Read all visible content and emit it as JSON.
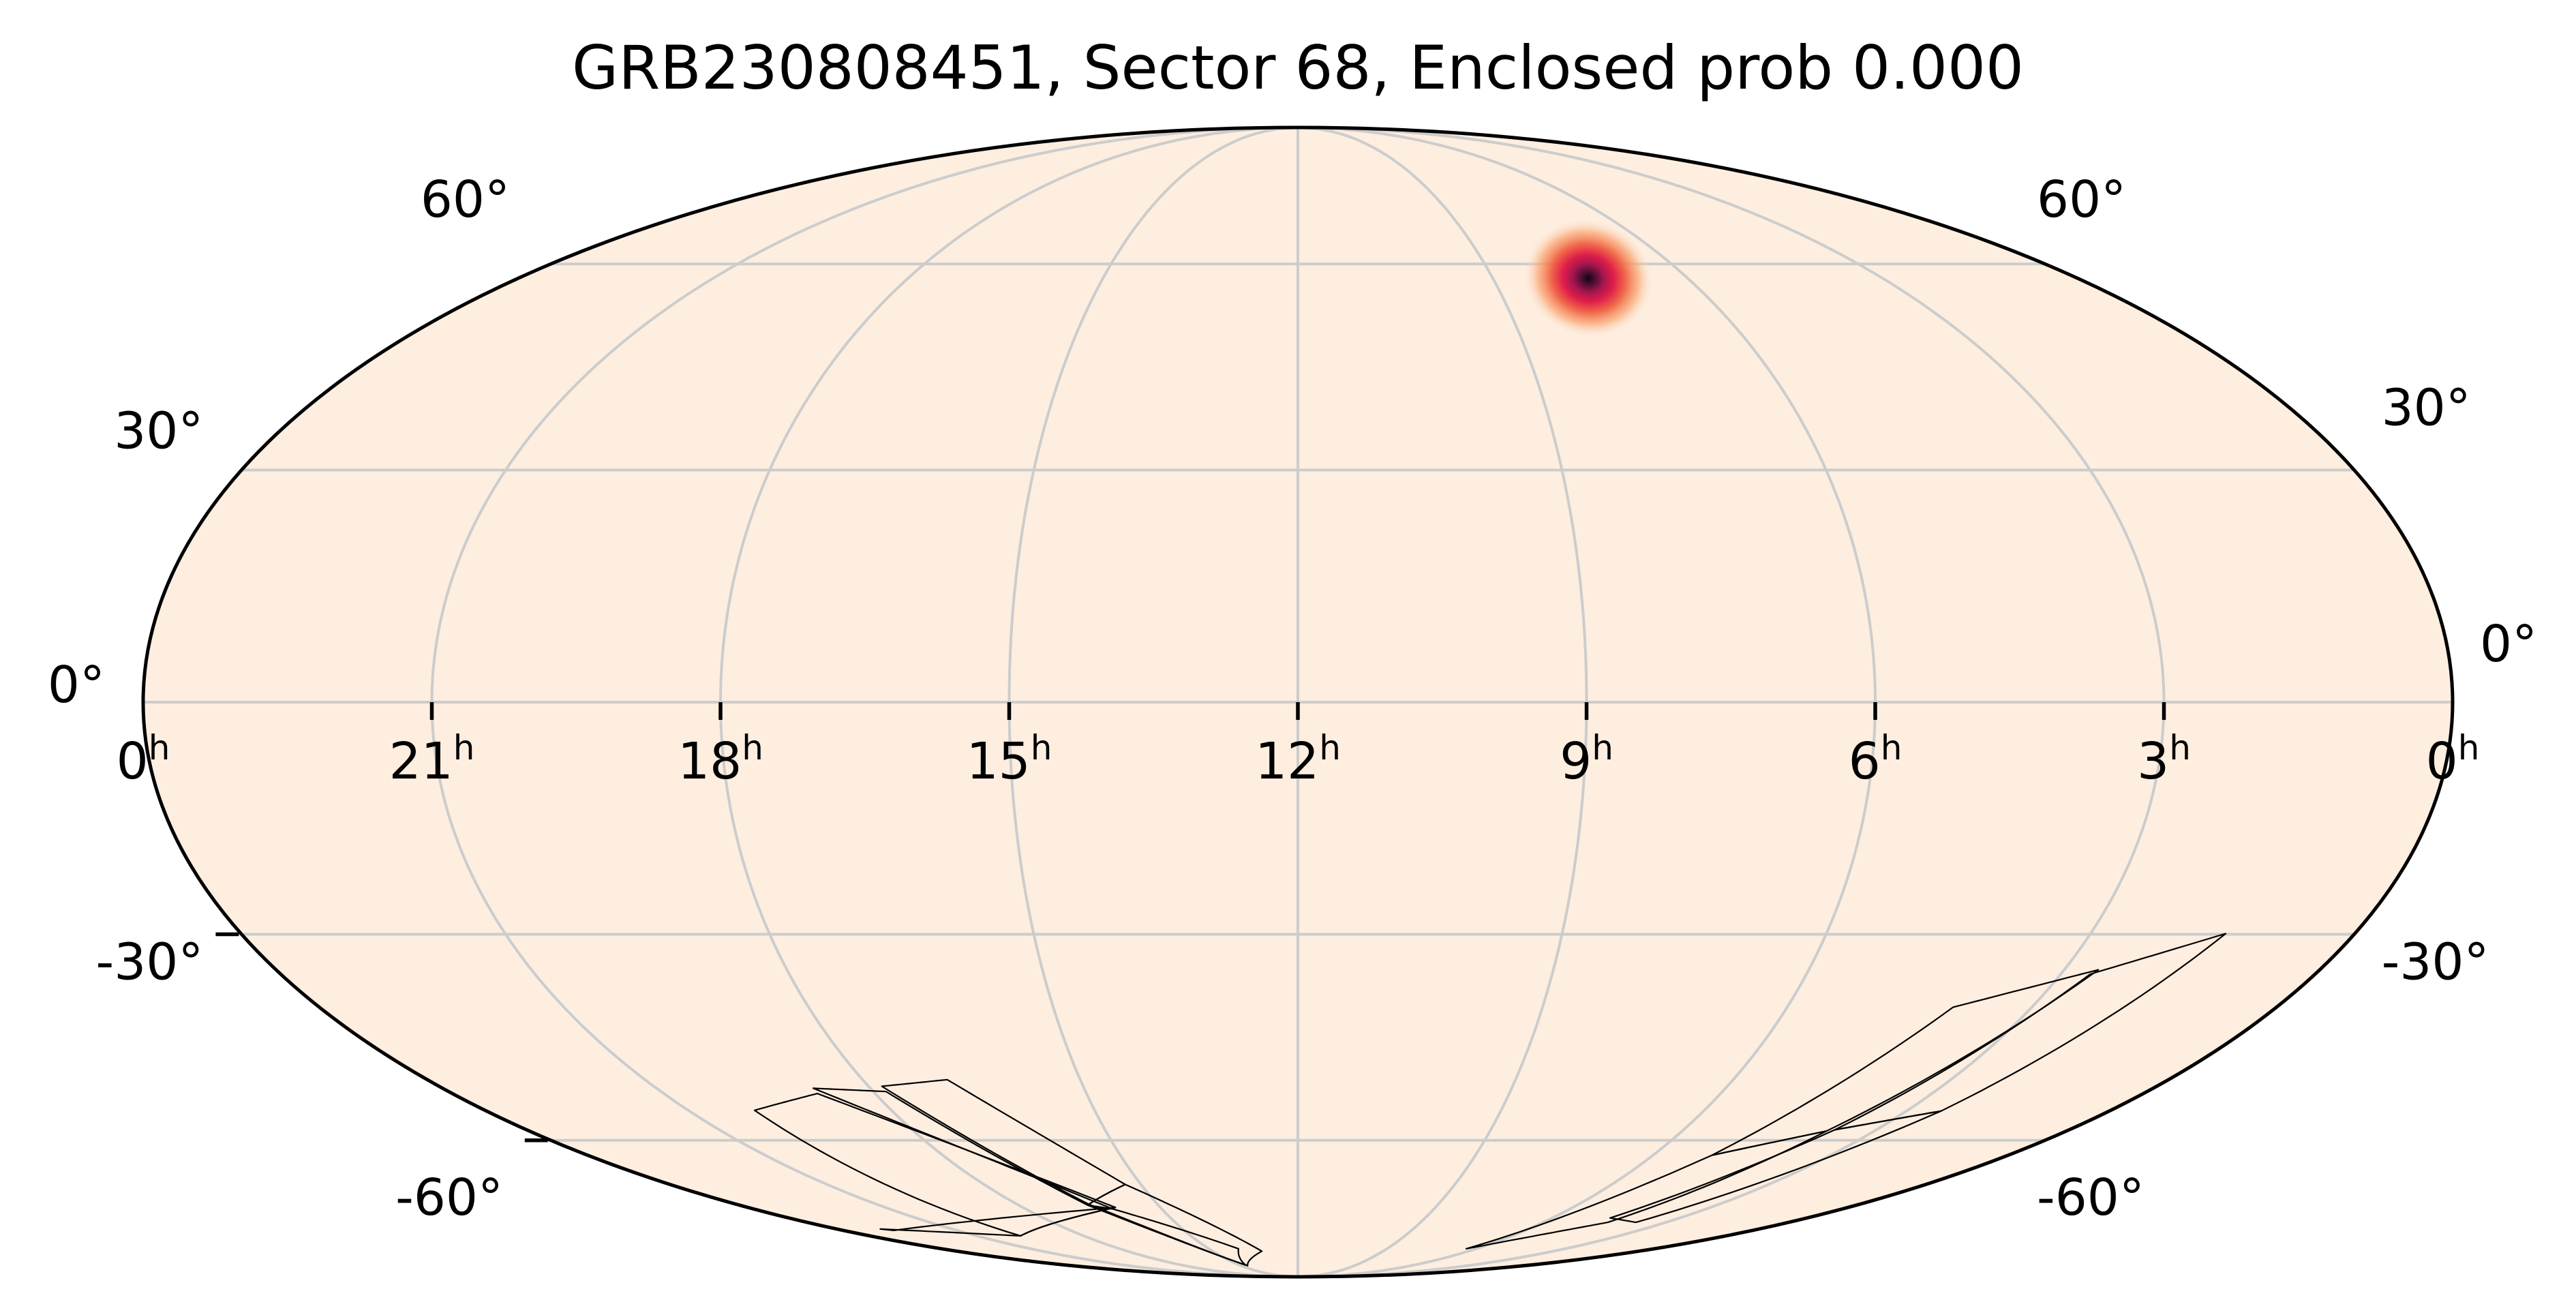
{
  "figure": {
    "title": "GRB230808451, Sector 68, Enclosed prob 0.000",
    "projection": "mollweide",
    "colormap": "rocket_r",
    "background_color": "#fdeee0",
    "grid_color": "#cccccc",
    "hotspot_colors": [
      "#fde3cf",
      "#f9a36e",
      "#f06042",
      "#e01e4a",
      "#a3164f",
      "#4a0e32",
      "#0f0612"
    ]
  },
  "ra_labels": [
    {
      "hours": 24,
      "value": "0",
      "unit": "h"
    },
    {
      "hours": 21,
      "value": "21",
      "unit": "h"
    },
    {
      "hours": 18,
      "value": "18",
      "unit": "h"
    },
    {
      "hours": 15,
      "value": "15",
      "unit": "h"
    },
    {
      "hours": 12,
      "value": "12",
      "unit": "h"
    },
    {
      "hours": 9,
      "value": "9",
      "unit": "h"
    },
    {
      "hours": 6,
      "value": "6",
      "unit": "h"
    },
    {
      "hours": 3,
      "value": "3",
      "unit": "h"
    },
    {
      "hours": 0,
      "value": "0",
      "unit": "h"
    }
  ],
  "dec_labels": [
    {
      "deg": 60,
      "left": "60°",
      "right": "60°"
    },
    {
      "deg": 30,
      "left": "30°",
      "right": "30°"
    },
    {
      "deg": 0,
      "left": "0°",
      "right": "0°"
    },
    {
      "deg": -30,
      "left": "-30°",
      "right": "-30°"
    },
    {
      "deg": -60,
      "left": "-60°",
      "right": "-60°"
    }
  ],
  "localization": {
    "ra_hours": 7.53,
    "dec_deg": 57.7,
    "sigma_ra_deg": 5.0,
    "sigma_dec_deg": 3.6
  },
  "sector_footprint_groups": [
    {
      "name": "left",
      "frames": [
        [
          [
            -158,
            -29.9
          ],
          [
            -140.2,
            -35.4
          ],
          [
            -125.3,
            -58.3
          ],
          [
            -142.7,
            -55.3
          ]
        ],
        [
          [
            -142.7,
            -55.3
          ],
          [
            -125.3,
            -58.3
          ],
          [
            -110.4,
            -74
          ],
          [
            -124,
            -74.9
          ]
        ],
        [
          [
            -141,
            -34.8
          ],
          [
            -120.5,
            -40
          ],
          [
            -104.9,
            -62.5
          ],
          [
            -123.8,
            -58.5
          ]
        ],
        [
          [
            -123.8,
            -58.5
          ],
          [
            -104.9,
            -62.5
          ],
          [
            -85,
            -80.8
          ],
          [
            -113.7,
            -74.9
          ]
        ]
      ]
    },
    {
      "name": "right",
      "frames": [
        [
          [
            72.5,
            -50.5
          ],
          [
            87.2,
            -51.5
          ],
          [
            67,
            -71.3
          ],
          [
            49.5,
            -67.6
          ]
        ],
        [
          [
            49.5,
            -67.6
          ],
          [
            67,
            -71.3
          ],
          [
            40,
            -85.4
          ],
          [
            19,
            -81.4
          ]
        ],
        [
          [
            87.3,
            -52.3
          ],
          [
            102,
            -51.8
          ],
          [
            61.2,
            -72.2
          ],
          [
            67.7,
            -71.5
          ]
        ],
        [
          [
            67.7,
            -71.5
          ],
          [
            61.2,
            -72.2
          ],
          [
            30,
            -80.8
          ],
          [
            40.4,
            -85.2
          ]
        ],
        [
          [
            102.3,
            -52.6
          ],
          [
            120.3,
            -55.2
          ],
          [
            116.6,
            -77.8
          ],
          [
            59.7,
            -71.9
          ]
        ],
        [
          [
            59.7,
            -71.9
          ],
          [
            116.6,
            -77.8
          ],
          [
            163,
            -76.3
          ],
          [
            160,
            -76.6
          ]
        ]
      ]
    }
  ]
}
